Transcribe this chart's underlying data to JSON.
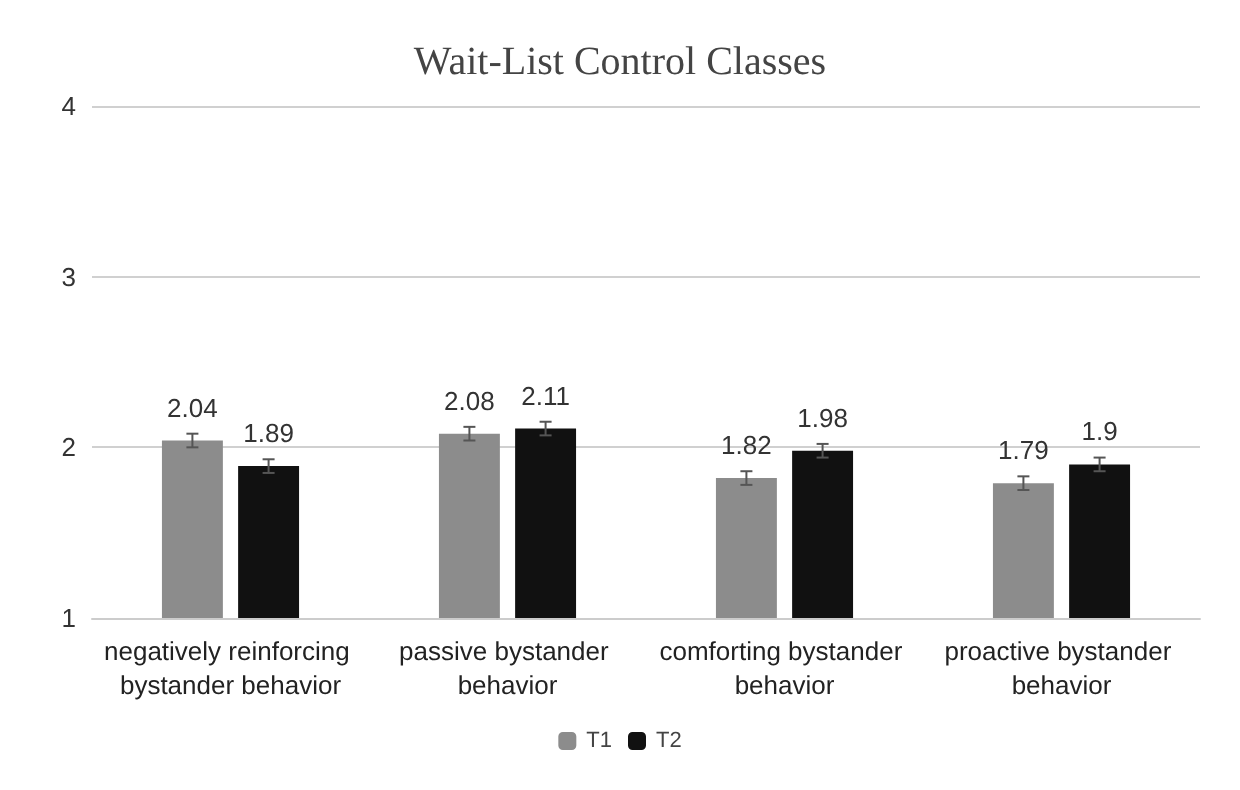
{
  "chart_data": {
    "type": "bar",
    "title": "Wait-List Control Classes",
    "categories": [
      "negatively reinforcing bystander behavior",
      "passive bystander behavior",
      "comforting bystander behavior",
      "proactive bystander behavior"
    ],
    "series": [
      {
        "name": "T1",
        "color": "#8c8c8c",
        "values": [
          2.04,
          2.08,
          1.82,
          1.79
        ],
        "errors": [
          0.04,
          0.04,
          0.04,
          0.04
        ]
      },
      {
        "name": "T2",
        "color": "#111111",
        "values": [
          1.89,
          2.11,
          1.98,
          1.9
        ],
        "errors": [
          0.04,
          0.04,
          0.04,
          0.04
        ]
      }
    ],
    "ylim": [
      1,
      4
    ],
    "yticks": [
      1,
      2,
      3,
      4
    ],
    "grid": "y",
    "legend": "bottom",
    "data_labels": true
  }
}
